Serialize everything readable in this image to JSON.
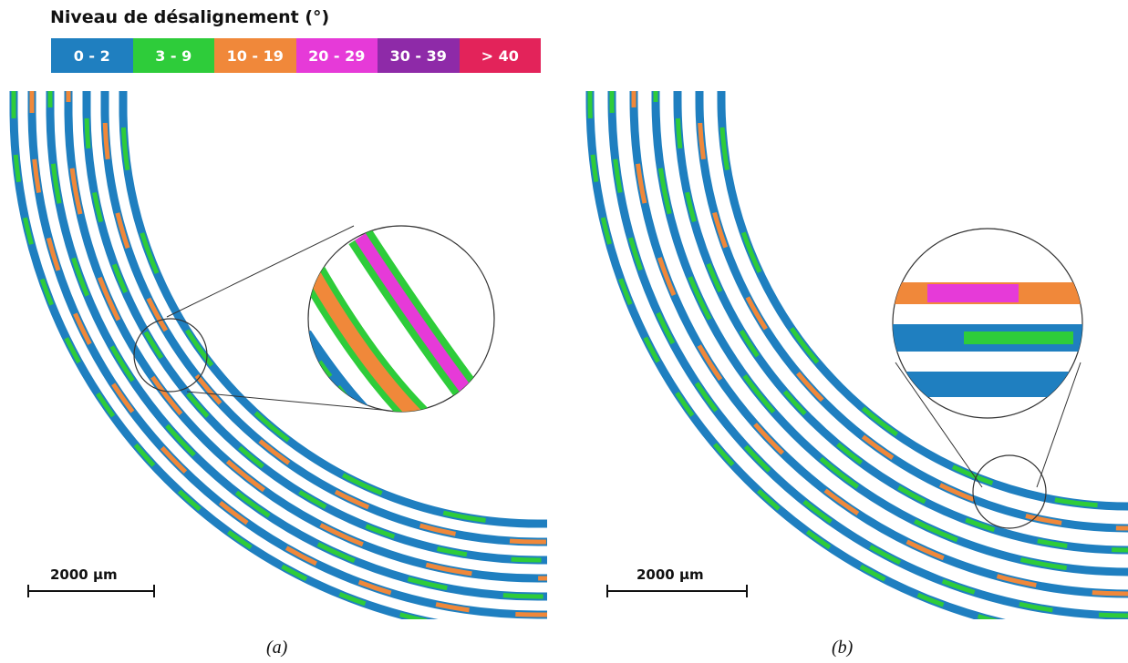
{
  "legend": {
    "title": "Niveau de désalignement (°)",
    "items": [
      {
        "label": "0 - 2",
        "color": "#1f7fc0"
      },
      {
        "label": "3 - 9",
        "color": "#2ecc3a"
      },
      {
        "label": "10 - 19",
        "color": "#f0883a"
      },
      {
        "label": "20 - 29",
        "color": "#e63ad8"
      },
      {
        "label": "30 - 39",
        "color": "#8e2aa8"
      },
      {
        "label": "> 40",
        "color": "#e3235a"
      }
    ]
  },
  "panels": [
    {
      "caption": "(a)",
      "scale_label": "2000 µm"
    },
    {
      "caption": "(b)",
      "scale_label": "2000 µm"
    }
  ]
}
